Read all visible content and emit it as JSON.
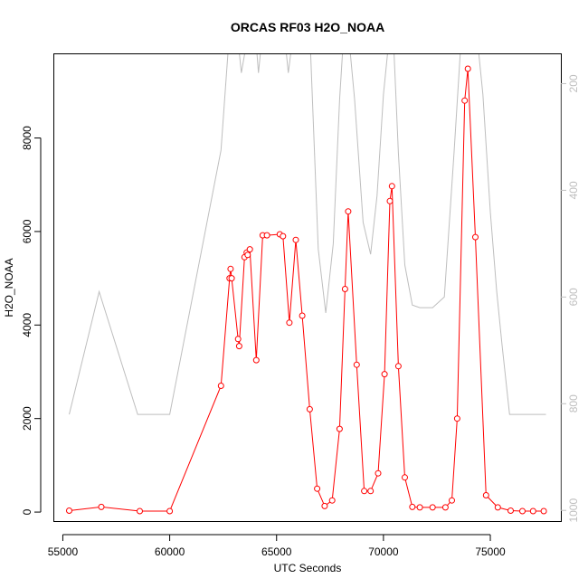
{
  "chart_data": {
    "type": "line",
    "title": "ORCAS RF03 H2O_NOAA",
    "xlabel": "UTC Seconds",
    "ylabel": "H2O_NOAA",
    "xlim": [
      54600,
      78300
    ],
    "ylim": [
      -192,
      9790
    ],
    "x_ticks": [
      55000,
      60000,
      65000,
      70000,
      75000
    ],
    "y_ticks": [
      0,
      2000,
      4000,
      6000,
      8000
    ],
    "grid": false,
    "colors": {
      "primary": "#ff0000",
      "secondary": "#bebebe",
      "axis": "#000000"
    },
    "series": [
      {
        "marker": "open-circle",
        "color": "#ff0000",
        "x": [
          55300,
          56800,
          58600,
          60000,
          62400,
          62800,
          62850,
          62900,
          63200,
          63250,
          63500,
          63600,
          63650,
          63750,
          64050,
          64350,
          64550,
          65150,
          65300,
          65600,
          65900,
          66200,
          66550,
          66900,
          67250,
          67600,
          67950,
          68200,
          68350,
          68750,
          69100,
          69400,
          69750,
          70050,
          70300,
          70400,
          70700,
          71000,
          71350,
          71700,
          72300,
          72900,
          73200,
          73450,
          73800,
          73950,
          74300,
          74800,
          75350,
          75950,
          76500,
          77000,
          77500
        ],
        "y": [
          30,
          110,
          20,
          20,
          2700,
          5000,
          5200,
          5000,
          3700,
          3550,
          5450,
          5550,
          5500,
          5620,
          3250,
          5920,
          5920,
          5940,
          5900,
          4050,
          5820,
          4200,
          2200,
          500,
          130,
          250,
          1780,
          4770,
          6430,
          3150,
          450,
          450,
          830,
          2950,
          6650,
          6970,
          3120,
          740,
          110,
          100,
          100,
          100,
          250,
          2000,
          8800,
          9480,
          5880,
          360,
          100,
          30,
          20,
          20,
          20
        ]
      },
      {
        "color": "#bebebe",
        "right_axis_label": "",
        "right_axis_ticks": [
          200,
          400,
          600,
          800,
          1000
        ],
        "right_axis_range": [
          1020,
          145
        ],
        "x": [
          55300,
          56700,
          58500,
          60000,
          62400,
          62800,
          63150,
          63350,
          63700,
          64000,
          64150,
          64350,
          64600,
          65150,
          65350,
          65550,
          65800,
          66200,
          66550,
          66950,
          67300,
          67650,
          67950,
          68150,
          68350,
          68650,
          69050,
          69400,
          69700,
          70000,
          70300,
          70450,
          70700,
          71000,
          71350,
          71700,
          72300,
          72850,
          73300,
          73600,
          73850,
          74100,
          74350,
          74650,
          75000,
          75300,
          75550,
          75900,
          76500,
          77200,
          77600
        ],
        "y": [
          820,
          590,
          820,
          820,
          325,
          100,
          100,
          180,
          100,
          100,
          180,
          100,
          100,
          100,
          100,
          180,
          100,
          100,
          100,
          510,
          630,
          500,
          230,
          100,
          100,
          230,
          460,
          520,
          410,
          220,
          100,
          100,
          330,
          540,
          615,
          620,
          620,
          600,
          330,
          140,
          100,
          100,
          100,
          220,
          440,
          590,
          690,
          820,
          820,
          820,
          820
        ]
      }
    ]
  }
}
